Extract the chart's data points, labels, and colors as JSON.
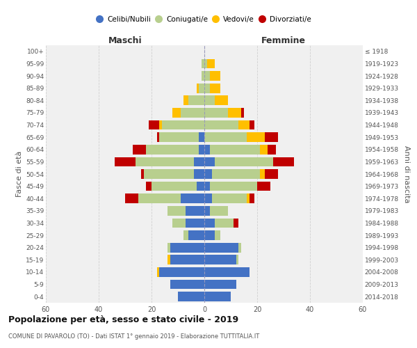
{
  "age_groups": [
    "0-4",
    "5-9",
    "10-14",
    "15-19",
    "20-24",
    "25-29",
    "30-34",
    "35-39",
    "40-44",
    "45-49",
    "50-54",
    "55-59",
    "60-64",
    "65-69",
    "70-74",
    "75-79",
    "80-84",
    "85-89",
    "90-94",
    "95-99",
    "100+"
  ],
  "birth_years": [
    "2014-2018",
    "2009-2013",
    "2004-2008",
    "1999-2003",
    "1994-1998",
    "1989-1993",
    "1984-1988",
    "1979-1983",
    "1974-1978",
    "1969-1973",
    "1964-1968",
    "1959-1963",
    "1954-1958",
    "1949-1953",
    "1944-1948",
    "1939-1943",
    "1934-1938",
    "1929-1933",
    "1924-1928",
    "1919-1923",
    "≤ 1918"
  ],
  "male": {
    "celibi": [
      10,
      13,
      17,
      13,
      13,
      6,
      7,
      7,
      9,
      3,
      4,
      4,
      2,
      2,
      0,
      0,
      0,
      0,
      0,
      0,
      0
    ],
    "coniugati": [
      0,
      0,
      0,
      0,
      1,
      2,
      5,
      7,
      16,
      17,
      19,
      22,
      20,
      15,
      16,
      9,
      6,
      2,
      1,
      1,
      0
    ],
    "vedovi": [
      0,
      0,
      1,
      1,
      0,
      0,
      0,
      0,
      0,
      0,
      0,
      0,
      0,
      0,
      1,
      3,
      2,
      1,
      0,
      0,
      0
    ],
    "divorziati": [
      0,
      0,
      0,
      0,
      0,
      0,
      0,
      0,
      5,
      2,
      1,
      8,
      5,
      1,
      4,
      0,
      0,
      0,
      0,
      0,
      0
    ]
  },
  "female": {
    "nubili": [
      10,
      12,
      17,
      12,
      13,
      4,
      4,
      2,
      3,
      2,
      3,
      4,
      2,
      0,
      0,
      0,
      0,
      0,
      0,
      0,
      0
    ],
    "coniugate": [
      0,
      0,
      0,
      1,
      1,
      2,
      7,
      7,
      13,
      18,
      18,
      22,
      19,
      16,
      13,
      9,
      4,
      2,
      2,
      1,
      0
    ],
    "vedove": [
      0,
      0,
      0,
      0,
      0,
      0,
      0,
      0,
      1,
      0,
      2,
      0,
      3,
      7,
      4,
      5,
      5,
      4,
      4,
      3,
      0
    ],
    "divorziate": [
      0,
      0,
      0,
      0,
      0,
      0,
      2,
      0,
      2,
      5,
      5,
      8,
      3,
      5,
      2,
      1,
      0,
      0,
      0,
      0,
      0
    ]
  },
  "colors": {
    "celibi_nubili": "#4472c4",
    "coniugati": "#b8cf8e",
    "vedovi": "#ffbf00",
    "divorziati": "#c00000"
  },
  "title": "Popolazione per età, sesso e stato civile - 2019",
  "subtitle": "COMUNE DI PAVAROLO (TO) - Dati ISTAT 1° gennaio 2019 - Elaborazione TUTTITALIA.IT",
  "xlabel_left": "Maschi",
  "xlabel_right": "Femmine",
  "ylabel_left": "Fasce di età",
  "ylabel_right": "Anni di nascita",
  "xlim": 60,
  "legend_labels": [
    "Celibi/Nubili",
    "Coniugati/e",
    "Vedovi/e",
    "Divorziati/e"
  ],
  "bg_color": "#f0f0f0",
  "grid_color": "#d0d0d0"
}
